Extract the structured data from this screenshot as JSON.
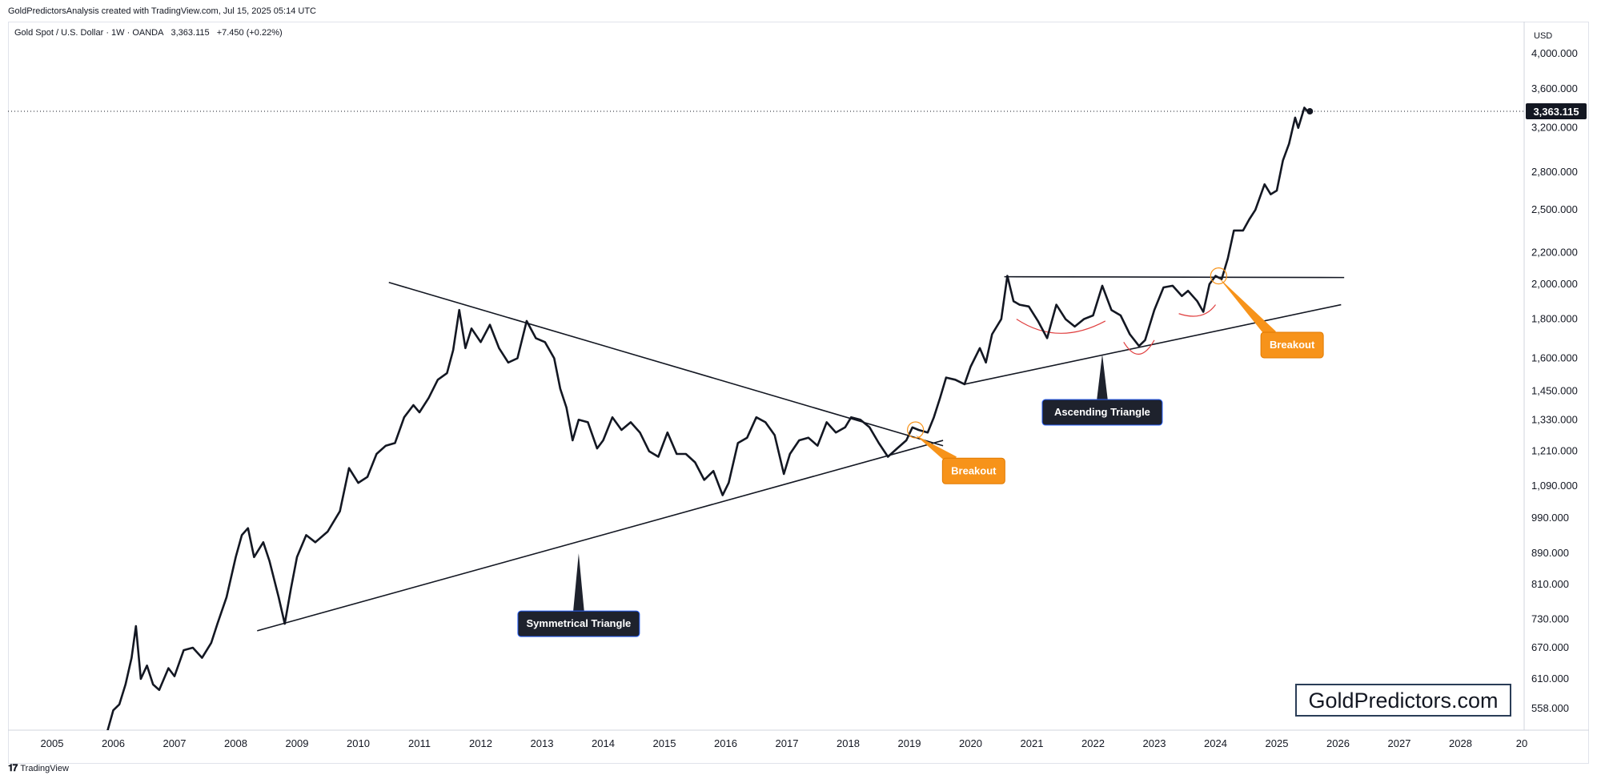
{
  "header": {
    "attribution": "GoldPredictorsAnalysis created with TradingView.com, Jul 15, 2025 05:14 UTC"
  },
  "legend": {
    "symbol": "Gold Spot / U.S. Dollar · 1W · OANDA",
    "price": "3,363.115",
    "change": "+7.450 (+0.22%)"
  },
  "footer": {
    "brand": "TradingView",
    "logo_icon": "tradingview-logo-icon"
  },
  "watermark": {
    "text": "GoldPredictors.com"
  },
  "colors": {
    "line": "#131722",
    "axis_text": "#131722",
    "orange": "#f7931a",
    "dark_label": "#1e222d",
    "red_arc": "#e04040"
  },
  "chart_data": {
    "type": "line",
    "title": "",
    "xlabel": "",
    "ylabel": "USD",
    "y_scale": "log",
    "ylim": [
      520,
      4400
    ],
    "xlim": [
      2004.6,
      2029.6
    ],
    "x_ticks": [
      "2005",
      "2006",
      "2007",
      "2008",
      "2009",
      "2010",
      "2011",
      "2012",
      "2013",
      "2014",
      "2015",
      "2016",
      "2017",
      "2018",
      "2019",
      "2020",
      "2021",
      "2022",
      "2023",
      "2024",
      "2025",
      "2026",
      "2027",
      "2028",
      "20"
    ],
    "y_ticks": [
      {
        "value": 4000,
        "label": "4,000.000"
      },
      {
        "value": 3600,
        "label": "3,600.000"
      },
      {
        "value": 3200,
        "label": "3,200.000"
      },
      {
        "value": 2800,
        "label": "2,800.000"
      },
      {
        "value": 2500,
        "label": "2,500.000"
      },
      {
        "value": 2200,
        "label": "2,200.000"
      },
      {
        "value": 2000,
        "label": "2,000.000"
      },
      {
        "value": 1800,
        "label": "1,800.000"
      },
      {
        "value": 1600,
        "label": "1,600.000"
      },
      {
        "value": 1450,
        "label": "1,450.000"
      },
      {
        "value": 1330,
        "label": "1,330.000"
      },
      {
        "value": 1210,
        "label": "1,210.000"
      },
      {
        "value": 1090,
        "label": "1,090.000"
      },
      {
        "value": 990,
        "label": "990.000"
      },
      {
        "value": 890,
        "label": "890.000"
      },
      {
        "value": 810,
        "label": "810.000"
      },
      {
        "value": 730,
        "label": "730.000"
      },
      {
        "value": 670,
        "label": "670.000"
      },
      {
        "value": 610,
        "label": "610.000"
      },
      {
        "value": 558,
        "label": "558.000"
      }
    ],
    "last_price": {
      "value": 3363.115,
      "label": "3,363.115"
    },
    "series": [
      {
        "name": "",
        "points": [
          [
            2005.9,
            520
          ],
          [
            2006.0,
            555
          ],
          [
            2006.1,
            565
          ],
          [
            2006.2,
            600
          ],
          [
            2006.3,
            650
          ],
          [
            2006.37,
            715
          ],
          [
            2006.45,
            610
          ],
          [
            2006.55,
            635
          ],
          [
            2006.65,
            600
          ],
          [
            2006.75,
            590
          ],
          [
            2006.9,
            630
          ],
          [
            2007.0,
            615
          ],
          [
            2007.15,
            665
          ],
          [
            2007.3,
            670
          ],
          [
            2007.45,
            650
          ],
          [
            2007.6,
            680
          ],
          [
            2007.7,
            720
          ],
          [
            2007.85,
            780
          ],
          [
            2008.0,
            880
          ],
          [
            2008.1,
            940
          ],
          [
            2008.2,
            960
          ],
          [
            2008.3,
            880
          ],
          [
            2008.45,
            920
          ],
          [
            2008.55,
            870
          ],
          [
            2008.7,
            780
          ],
          [
            2008.8,
            720
          ],
          [
            2008.9,
            800
          ],
          [
            2009.0,
            880
          ],
          [
            2009.15,
            940
          ],
          [
            2009.3,
            920
          ],
          [
            2009.5,
            950
          ],
          [
            2009.7,
            1010
          ],
          [
            2009.85,
            1150
          ],
          [
            2010.0,
            1100
          ],
          [
            2010.15,
            1120
          ],
          [
            2010.3,
            1200
          ],
          [
            2010.45,
            1230
          ],
          [
            2010.6,
            1240
          ],
          [
            2010.75,
            1340
          ],
          [
            2010.9,
            1390
          ],
          [
            2011.0,
            1360
          ],
          [
            2011.15,
            1420
          ],
          [
            2011.3,
            1500
          ],
          [
            2011.45,
            1530
          ],
          [
            2011.55,
            1640
          ],
          [
            2011.65,
            1850
          ],
          [
            2011.75,
            1650
          ],
          [
            2011.85,
            1750
          ],
          [
            2012.0,
            1680
          ],
          [
            2012.15,
            1770
          ],
          [
            2012.3,
            1650
          ],
          [
            2012.45,
            1580
          ],
          [
            2012.6,
            1600
          ],
          [
            2012.75,
            1790
          ],
          [
            2012.9,
            1700
          ],
          [
            2013.05,
            1680
          ],
          [
            2013.2,
            1600
          ],
          [
            2013.3,
            1460
          ],
          [
            2013.4,
            1380
          ],
          [
            2013.5,
            1250
          ],
          [
            2013.6,
            1330
          ],
          [
            2013.75,
            1320
          ],
          [
            2013.9,
            1220
          ],
          [
            2014.0,
            1250
          ],
          [
            2014.15,
            1340
          ],
          [
            2014.3,
            1290
          ],
          [
            2014.45,
            1320
          ],
          [
            2014.6,
            1280
          ],
          [
            2014.75,
            1210
          ],
          [
            2014.9,
            1190
          ],
          [
            2015.05,
            1280
          ],
          [
            2015.2,
            1200
          ],
          [
            2015.35,
            1200
          ],
          [
            2015.5,
            1170
          ],
          [
            2015.65,
            1110
          ],
          [
            2015.8,
            1140
          ],
          [
            2015.95,
            1060
          ],
          [
            2016.05,
            1100
          ],
          [
            2016.2,
            1240
          ],
          [
            2016.35,
            1260
          ],
          [
            2016.5,
            1340
          ],
          [
            2016.65,
            1320
          ],
          [
            2016.8,
            1270
          ],
          [
            2016.95,
            1130
          ],
          [
            2017.05,
            1200
          ],
          [
            2017.2,
            1250
          ],
          [
            2017.35,
            1260
          ],
          [
            2017.5,
            1230
          ],
          [
            2017.65,
            1320
          ],
          [
            2017.8,
            1280
          ],
          [
            2017.95,
            1300
          ],
          [
            2018.05,
            1340
          ],
          [
            2018.2,
            1330
          ],
          [
            2018.35,
            1300
          ],
          [
            2018.5,
            1240
          ],
          [
            2018.65,
            1190
          ],
          [
            2018.8,
            1220
          ],
          [
            2018.95,
            1250
          ],
          [
            2019.05,
            1300
          ],
          [
            2019.15,
            1290
          ],
          [
            2019.3,
            1280
          ],
          [
            2019.4,
            1340
          ],
          [
            2019.5,
            1420
          ],
          [
            2019.6,
            1510
          ],
          [
            2019.75,
            1500
          ],
          [
            2019.9,
            1480
          ],
          [
            2020.0,
            1560
          ],
          [
            2020.15,
            1650
          ],
          [
            2020.25,
            1580
          ],
          [
            2020.35,
            1720
          ],
          [
            2020.5,
            1800
          ],
          [
            2020.6,
            2050
          ],
          [
            2020.7,
            1900
          ],
          [
            2020.8,
            1880
          ],
          [
            2020.95,
            1870
          ],
          [
            2021.1,
            1790
          ],
          [
            2021.25,
            1700
          ],
          [
            2021.4,
            1880
          ],
          [
            2021.55,
            1800
          ],
          [
            2021.7,
            1760
          ],
          [
            2021.85,
            1800
          ],
          [
            2022.0,
            1820
          ],
          [
            2022.15,
            1990
          ],
          [
            2022.3,
            1850
          ],
          [
            2022.45,
            1820
          ],
          [
            2022.6,
            1720
          ],
          [
            2022.75,
            1660
          ],
          [
            2022.85,
            1690
          ],
          [
            2023.0,
            1850
          ],
          [
            2023.15,
            1980
          ],
          [
            2023.3,
            1990
          ],
          [
            2023.45,
            1930
          ],
          [
            2023.55,
            1960
          ],
          [
            2023.7,
            1900
          ],
          [
            2023.8,
            1840
          ],
          [
            2023.9,
            2000
          ],
          [
            2024.0,
            2050
          ],
          [
            2024.1,
            2030
          ],
          [
            2024.2,
            2160
          ],
          [
            2024.3,
            2350
          ],
          [
            2024.45,
            2350
          ],
          [
            2024.55,
            2430
          ],
          [
            2024.65,
            2500
          ],
          [
            2024.8,
            2700
          ],
          [
            2024.9,
            2620
          ],
          [
            2025.0,
            2650
          ],
          [
            2025.1,
            2900
          ],
          [
            2025.2,
            3050
          ],
          [
            2025.3,
            3300
          ],
          [
            2025.35,
            3200
          ],
          [
            2025.45,
            3400
          ],
          [
            2025.52,
            3350
          ],
          [
            2025.54,
            3363.115
          ]
        ]
      }
    ],
    "trendlines": [
      {
        "name": "sym-upper",
        "from": [
          2010.5,
          2010
        ],
        "to": [
          2019.55,
          1230
        ]
      },
      {
        "name": "sym-lower",
        "from": [
          2008.35,
          705
        ],
        "to": [
          2019.55,
          1250
        ]
      },
      {
        "name": "asc-upper",
        "from": [
          2020.55,
          2045
        ],
        "to": [
          2026.1,
          2040
        ]
      },
      {
        "name": "asc-lower",
        "from": [
          2019.9,
          1480
        ],
        "to": [
          2026.05,
          1880
        ]
      }
    ],
    "annotations": [
      {
        "type": "label",
        "style": "dark",
        "text": "Symmetrical Triangle",
        "anchor": [
          2013.6,
          890
        ],
        "label_pos": [
          2013.6,
          720
        ]
      },
      {
        "type": "label",
        "style": "dark",
        "text": "Ascending Triangle",
        "anchor": [
          2022.15,
          1620
        ],
        "label_pos": [
          2022.15,
          1360
        ]
      },
      {
        "type": "label",
        "style": "orange",
        "text": "Breakout",
        "anchor": [
          2019.1,
          1270
        ],
        "label_pos": [
          2020.05,
          1140
        ]
      },
      {
        "type": "label",
        "style": "orange",
        "text": "Breakout",
        "anchor": [
          2024.05,
          2040
        ],
        "label_pos": [
          2025.25,
          1665
        ]
      },
      {
        "type": "circle",
        "at": [
          2019.1,
          1290
        ]
      },
      {
        "type": "circle",
        "at": [
          2024.05,
          2050
        ]
      },
      {
        "type": "arc",
        "from": [
          2020.75,
          1800
        ],
        "mid": [
          2021.45,
          1725
        ],
        "to": [
          2022.2,
          1790
        ]
      },
      {
        "type": "arc",
        "from": [
          2022.5,
          1680
        ],
        "mid": [
          2022.75,
          1620
        ],
        "to": [
          2023.0,
          1690
        ]
      },
      {
        "type": "arc",
        "from": [
          2023.4,
          1830
        ],
        "mid": [
          2023.75,
          1820
        ],
        "to": [
          2024.0,
          1880
        ]
      }
    ]
  }
}
